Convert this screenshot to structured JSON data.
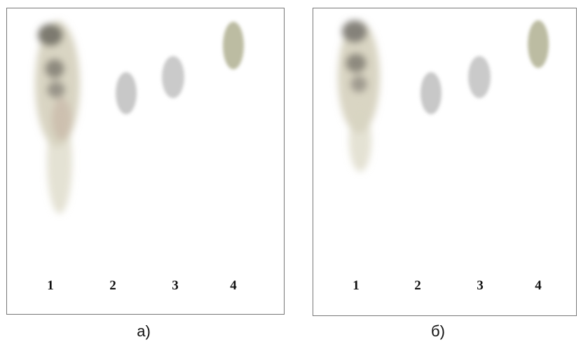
{
  "panels": [
    {
      "caption": "а)",
      "lanes": [
        "1",
        "2",
        "3",
        "4"
      ]
    },
    {
      "caption": "б)",
      "lanes": [
        "1",
        "2",
        "3",
        "4"
      ]
    }
  ]
}
